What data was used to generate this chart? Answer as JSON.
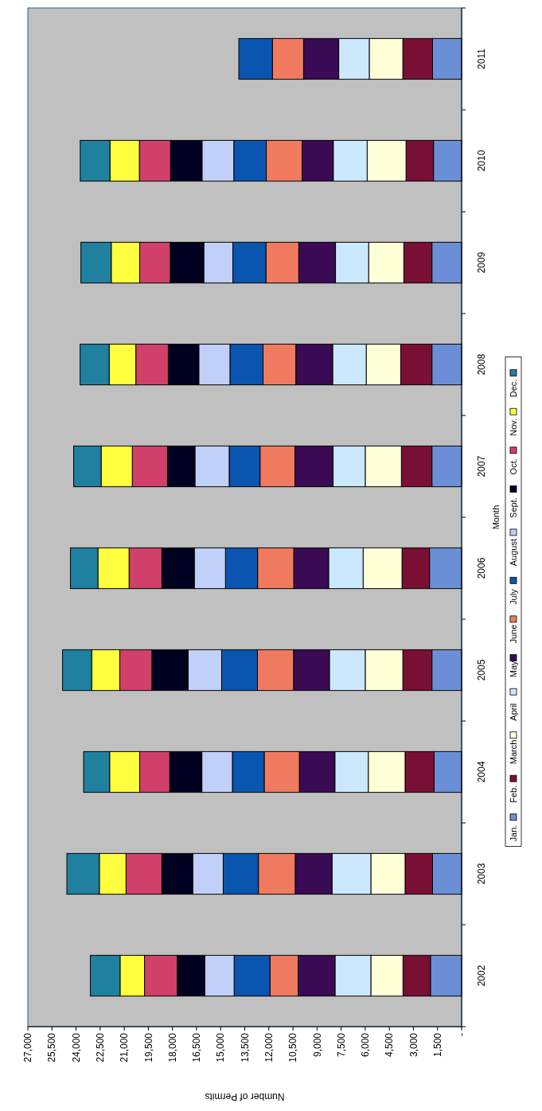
{
  "chart_data": {
    "type": "bar",
    "stacked": true,
    "orientation": "horizontal",
    "xlabel": "Number of Permits",
    "ylabel": "Month",
    "categories": [
      "2011",
      "2010",
      "2009",
      "2008",
      "2007",
      "2006",
      "2005",
      "2004",
      "2003",
      "2002"
    ],
    "xlim": [
      27000,
      0
    ],
    "xticks": [
      {
        "value": 27000,
        "label": "27,000"
      },
      {
        "value": 25500,
        "label": "25,500"
      },
      {
        "value": 24000,
        "label": "24,000"
      },
      {
        "value": 22500,
        "label": "22,500"
      },
      {
        "value": 21000,
        "label": "21,000"
      },
      {
        "value": 19500,
        "label": "19,500"
      },
      {
        "value": 18000,
        "label": "18,000"
      },
      {
        "value": 16500,
        "label": "16,500"
      },
      {
        "value": 15000,
        "label": "15,000"
      },
      {
        "value": 13500,
        "label": "13,500"
      },
      {
        "value": 12000,
        "label": "12,000"
      },
      {
        "value": 10500,
        "label": "10,500"
      },
      {
        "value": 9000,
        "label": "9,000"
      },
      {
        "value": 7500,
        "label": "7,500"
      },
      {
        "value": 6000,
        "label": "6,000"
      },
      {
        "value": 4500,
        "label": "4,500"
      },
      {
        "value": 3000,
        "label": "3,000"
      },
      {
        "value": 1500,
        "label": "1,500"
      },
      {
        "value": 0,
        "label": "-"
      }
    ],
    "grid": false,
    "legend": "right",
    "series": [
      {
        "name": "Jan.",
        "color": "#6b8fd6",
        "values": [
          1810,
          1750,
          1850,
          1850,
          1850,
          2000,
          1850,
          1710,
          1810,
          1940
        ]
      },
      {
        "name": "Feb.",
        "color": "#7a0f35",
        "values": [
          1850,
          1710,
          1750,
          1940,
          1900,
          1710,
          1810,
          1810,
          1710,
          1710
        ]
      },
      {
        "name": "March",
        "color": "#ffffd8",
        "values": [
          2090,
          2420,
          2190,
          2150,
          2250,
          2420,
          2340,
          2290,
          2130,
          2000
        ]
      },
      {
        "name": "April",
        "color": "#cce8ff",
        "values": [
          1900,
          2110,
          2060,
          2090,
          2000,
          2150,
          2230,
          2080,
          2420,
          2230
        ]
      },
      {
        "name": "May",
        "color": "#3a0a55",
        "values": [
          2190,
          1940,
          2290,
          2290,
          2380,
          2170,
          2230,
          2210,
          2290,
          2300
        ]
      },
      {
        "name": "June",
        "color": "#f07a60",
        "values": [
          1940,
          2230,
          2040,
          2040,
          2170,
          2250,
          2250,
          2190,
          2290,
          1750
        ]
      },
      {
        "name": "July",
        "color": "#0a55b0",
        "values": [
          2090,
          2020,
          2060,
          2060,
          1920,
          2000,
          2230,
          1980,
          2190,
          2230
        ]
      },
      {
        "name": "August",
        "color": "#c0d0f8",
        "values": [
          null,
          1980,
          1810,
          1940,
          2130,
          1940,
          2090,
          1900,
          1900,
          1830
        ]
      },
      {
        "name": "Sept.",
        "color": "#000020",
        "values": [
          null,
          1960,
          2090,
          1900,
          1710,
          2020,
          2250,
          2000,
          1920,
          1710
        ]
      },
      {
        "name": "Oct.",
        "color": "#d0406a",
        "values": [
          null,
          1940,
          1900,
          2020,
          2190,
          2040,
          2000,
          1870,
          2230,
          2040
        ]
      },
      {
        "name": "Nov.",
        "color": "#ffff40",
        "values": [
          null,
          1830,
          1770,
          1660,
          1940,
          1940,
          1750,
          1870,
          1660,
          1520
        ]
      },
      {
        "name": "Dec.",
        "color": "#2080a0",
        "values": [
          null,
          1850,
          1890,
          1810,
          1710,
          1710,
          1810,
          1620,
          2020,
          1850
        ]
      }
    ]
  }
}
